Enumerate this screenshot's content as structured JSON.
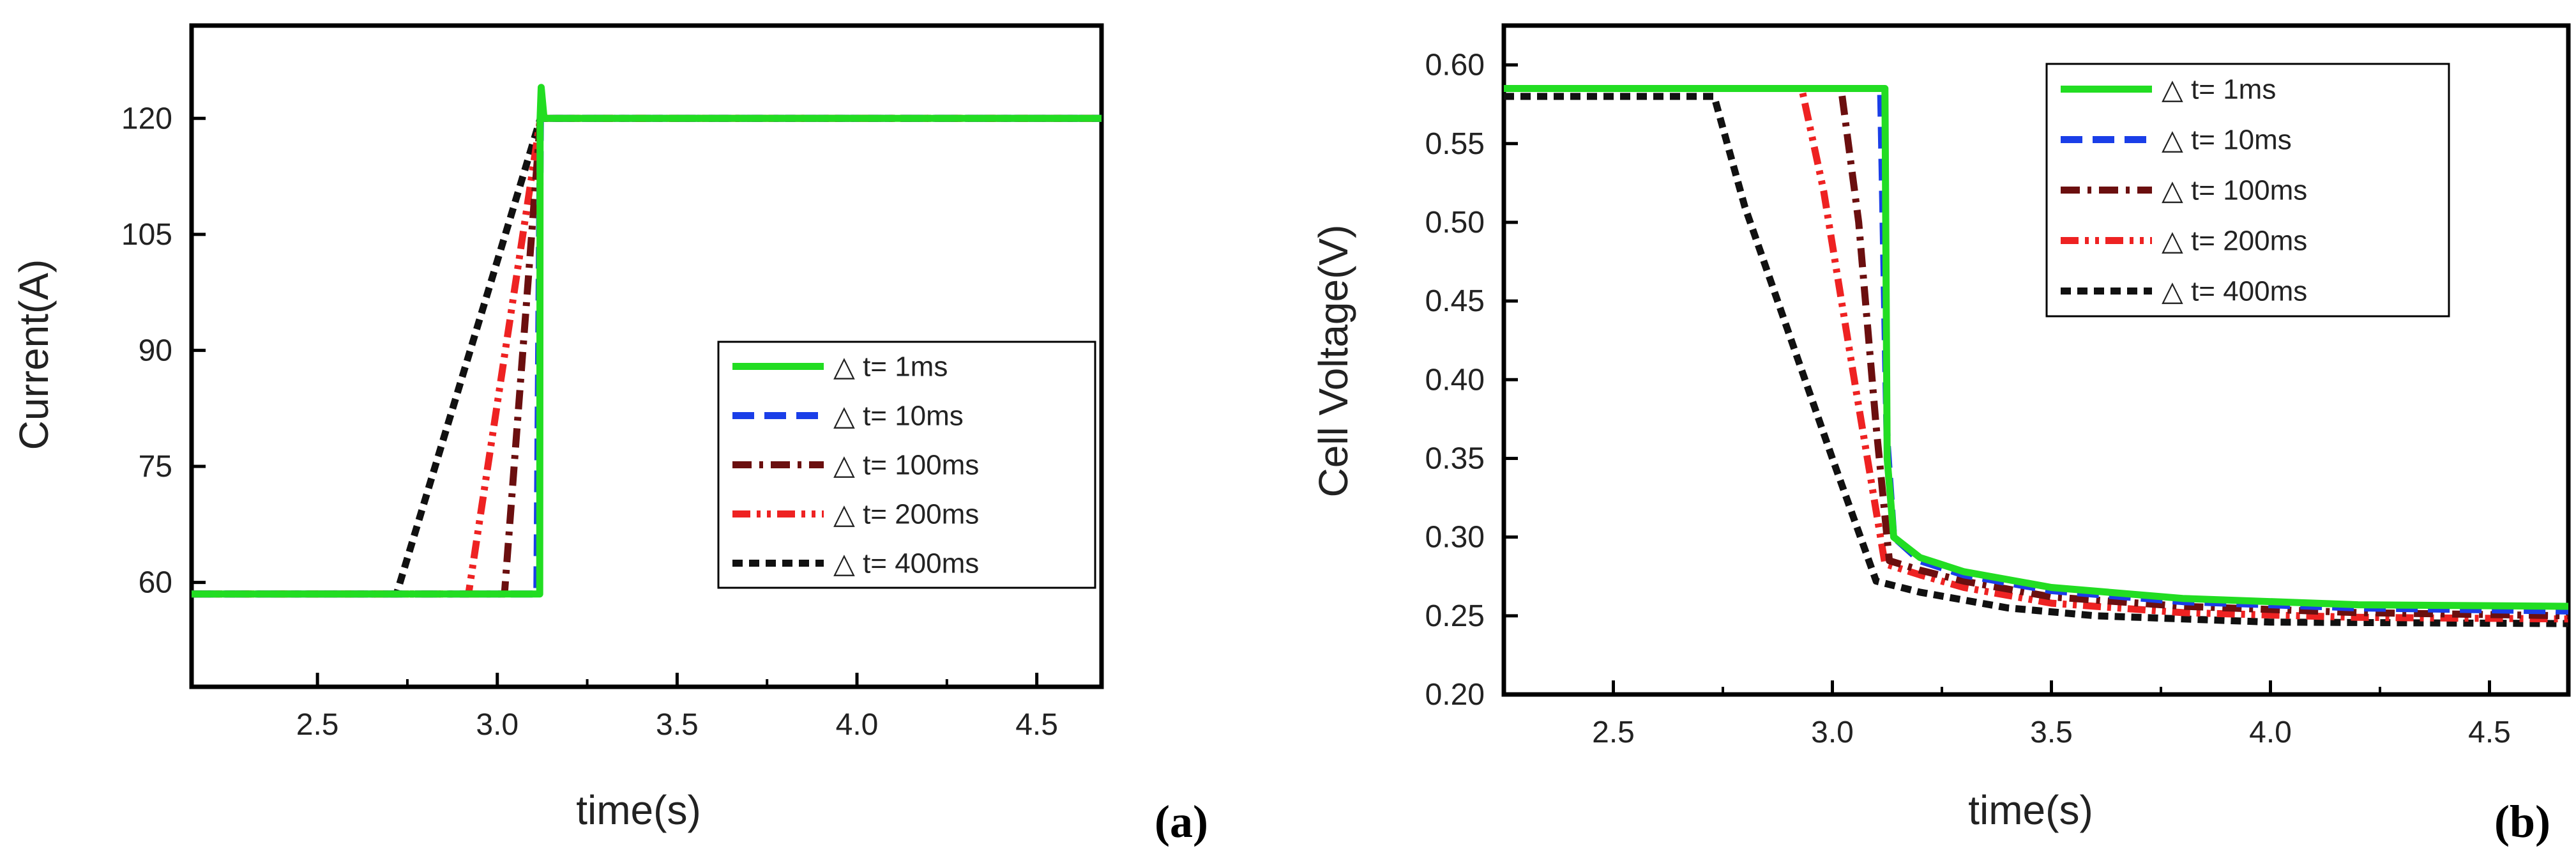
{
  "chart_data": [
    {
      "panel": "(a)",
      "type": "line",
      "xlabel": "time(s)",
      "ylabel": "Current(A)",
      "xlim": [
        2.15,
        4.68
      ],
      "ylim": [
        46.5,
        132
      ],
      "xticks": [
        2.5,
        3.0,
        3.5,
        4.0,
        4.5
      ],
      "xtick_labels": [
        "2.5",
        "3.0",
        "3.5",
        "4.0",
        "4.5"
      ],
      "yticks": [
        60,
        75,
        90,
        105,
        120
      ],
      "ytick_labels": [
        "60",
        "75",
        "90",
        "105",
        "120"
      ],
      "legend_position": "center-right",
      "series": [
        {
          "name": "△ t= 1ms",
          "color": "#22dd22",
          "dash": "solid",
          "x": [
            2.15,
            3.118,
            3.119,
            3.122,
            3.13,
            4.68
          ],
          "y": [
            58.5,
            58.5,
            120,
            124,
            120,
            120
          ]
        },
        {
          "name": "△ t= 10ms",
          "color": "#1a3ee8",
          "dash": "dashed",
          "x": [
            2.15,
            3.11,
            3.12,
            4.68
          ],
          "y": [
            58.5,
            58.5,
            120,
            120
          ]
        },
        {
          "name": "△ t= 100ms",
          "color": "#6b0f0f",
          "dash": "dashdot",
          "x": [
            2.15,
            3.02,
            3.12,
            4.68
          ],
          "y": [
            58.5,
            58.5,
            120,
            120
          ]
        },
        {
          "name": "△ t= 200ms",
          "color": "#ee2222",
          "dash": "dashdotdot",
          "x": [
            2.15,
            2.92,
            3.12,
            4.68
          ],
          "y": [
            58.5,
            58.5,
            120,
            120
          ]
        },
        {
          "name": "△ t= 400ms",
          "color": "#111111",
          "dash": "short-dash",
          "x": [
            2.15,
            2.72,
            3.12,
            4.68
          ],
          "y": [
            58.5,
            58.5,
            120,
            120
          ]
        }
      ]
    },
    {
      "panel": "(b)",
      "type": "line",
      "xlabel": "time(s)",
      "ylabel": "Cell Voltage(V)",
      "xlim": [
        2.25,
        4.68
      ],
      "ylim": [
        0.2,
        0.625
      ],
      "xticks": [
        2.5,
        3.0,
        3.5,
        4.0,
        4.5
      ],
      "xtick_labels": [
        "2.5",
        "3.0",
        "3.5",
        "4.0",
        "4.5"
      ],
      "yticks": [
        0.2,
        0.25,
        0.3,
        0.35,
        0.4,
        0.45,
        0.5,
        0.55,
        0.6
      ],
      "ytick_labels": [
        "0.20",
        "0.25",
        "0.30",
        "0.35",
        "0.40",
        "0.45",
        "0.50",
        "0.55",
        "0.60"
      ],
      "legend_position": "top-right",
      "series": [
        {
          "name": "△ t= 1ms",
          "color": "#22dd22",
          "dash": "solid",
          "x": [
            2.25,
            3.12,
            3.125,
            3.14,
            3.2,
            3.3,
            3.5,
            3.8,
            4.2,
            4.68
          ],
          "y": [
            0.585,
            0.585,
            0.35,
            0.3,
            0.287,
            0.278,
            0.268,
            0.261,
            0.257,
            0.256
          ]
        },
        {
          "name": "△ t= 10ms",
          "color": "#1a3ee8",
          "dash": "dashed",
          "x": [
            2.25,
            3.11,
            3.125,
            3.14,
            3.2,
            3.3,
            3.5,
            3.8,
            4.2,
            4.68
          ],
          "y": [
            0.585,
            0.585,
            0.36,
            0.3,
            0.285,
            0.276,
            0.266,
            0.259,
            0.255,
            0.253
          ]
        },
        {
          "name": "△ t= 100ms",
          "color": "#6b0f0f",
          "dash": "dashdot",
          "x": [
            2.25,
            3.02,
            3.06,
            3.1,
            3.13,
            3.2,
            3.3,
            3.5,
            3.8,
            4.2,
            4.68
          ],
          "y": [
            0.585,
            0.585,
            0.5,
            0.37,
            0.285,
            0.279,
            0.272,
            0.262,
            0.256,
            0.252,
            0.25
          ]
        },
        {
          "name": "△ t= 200ms",
          "color": "#ee2222",
          "dash": "dashdotdot",
          "x": [
            2.25,
            2.93,
            2.98,
            3.05,
            3.12,
            3.2,
            3.3,
            3.5,
            3.8,
            4.2,
            4.68
          ],
          "y": [
            0.585,
            0.585,
            0.52,
            0.4,
            0.283,
            0.276,
            0.268,
            0.258,
            0.252,
            0.249,
            0.248
          ]
        },
        {
          "name": "△ t= 400ms",
          "color": "#111111",
          "dash": "short-dash",
          "x": [
            2.25,
            2.73,
            2.8,
            2.9,
            3.0,
            3.1,
            3.2,
            3.4,
            3.6,
            4.0,
            4.68
          ],
          "y": [
            0.58,
            0.58,
            0.51,
            0.43,
            0.35,
            0.272,
            0.265,
            0.255,
            0.25,
            0.246,
            0.245
          ]
        }
      ]
    }
  ]
}
